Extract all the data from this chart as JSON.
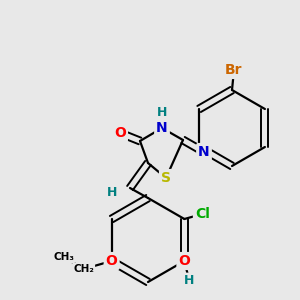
{
  "background_color": "#e8e8e8",
  "figsize": [
    3.0,
    3.0
  ],
  "dpi": 100,
  "atom_colors": {
    "S": "#b8b800",
    "N": "#0000cc",
    "O": "#ff0000",
    "Br": "#cc6600",
    "Cl": "#00aa00",
    "H": "#008080",
    "C": "#000000"
  }
}
